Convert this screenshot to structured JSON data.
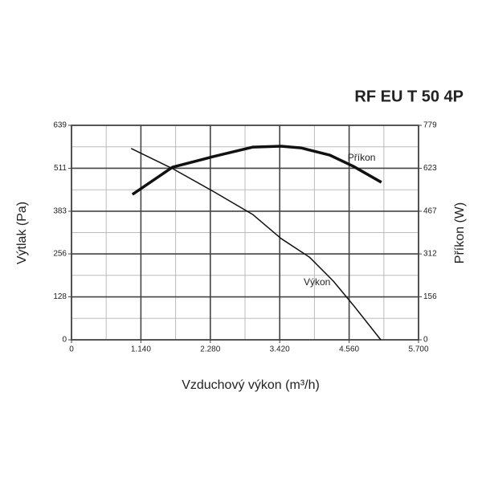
{
  "chart_data": {
    "type": "line",
    "title": "RF EU T 50 4P",
    "x_label": "Vzduchový výkon (m³/h)",
    "y_label": "Výtlak (Pa)",
    "y2_label": "Příkon (W)",
    "xlim": [
      0,
      5700
    ],
    "xticks": [
      0,
      {
        "value": 1140,
        "label": "1.140"
      },
      {
        "value": 2280,
        "label": "2.280"
      },
      {
        "value": 3420,
        "label": "3.420"
      },
      {
        "value": 4560,
        "label": "4.560"
      },
      {
        "value": 5700,
        "label": "5.700"
      }
    ],
    "ylim": [
      0,
      639
    ],
    "yticks": [
      0,
      128,
      256,
      383,
      511,
      639
    ],
    "y2lim": [
      0,
      779
    ],
    "y2ticks": [
      0,
      156,
      312,
      467,
      623,
      779
    ],
    "grid": true,
    "series": [
      {
        "name": "Výkon",
        "color": "#111111",
        "axis": "y",
        "x": [
          980,
          1660,
          2320,
          2980,
          3440,
          3910,
          4300,
          4630,
          5080
        ],
        "values": [
          570,
          510,
          443,
          373,
          302,
          246,
          175,
          103,
          0
        ]
      },
      {
        "name": "Příkon",
        "color": "#111111",
        "axis": "y2",
        "x": [
          1000,
          1660,
          2320,
          2980,
          3440,
          3770,
          4240,
          4630,
          5090
        ],
        "values": [
          528,
          627,
          665,
          700,
          703,
          697,
          671,
          630,
          572
        ]
      }
    ]
  }
}
